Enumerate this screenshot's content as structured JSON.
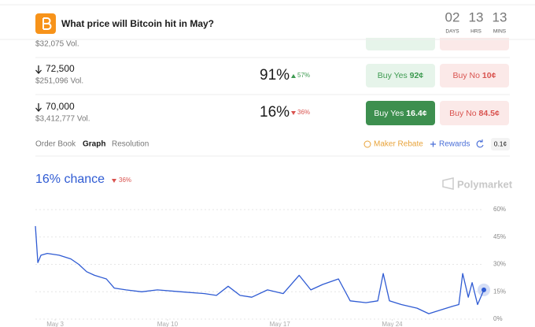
{
  "header": {
    "title": "What price will Bitcoin hit in May?",
    "countdown": [
      {
        "value": "02",
        "unit": "DAYS"
      },
      {
        "value": "13",
        "unit": "HRS"
      },
      {
        "value": "13",
        "unit": "MINS"
      }
    ]
  },
  "markets": [
    {
      "volume": "$32,075 Vol."
    },
    {
      "price": "72,500",
      "volume": "$251,096 Vol.",
      "chance": "91%",
      "change": "57%",
      "buy_yes": {
        "label": "Buy Yes",
        "price": "92¢"
      },
      "buy_no": {
        "label": "Buy No",
        "price": "10¢"
      }
    },
    {
      "price": "70,000",
      "volume": "$3,412,777 Vol.",
      "chance": "16%",
      "change": "36%",
      "buy_yes": {
        "label": "Buy Yes",
        "price": "16.4¢"
      },
      "buy_no": {
        "label": "Buy No",
        "price": "84.5¢"
      }
    }
  ],
  "tabs": [
    "Order Book",
    "Graph",
    "Resolution"
  ],
  "toolbar": {
    "maker_rebate": "Maker Rebate",
    "rewards": "Rewards",
    "tick_size": "0.1¢"
  },
  "chart_data": {
    "type": "line",
    "title": "16% chance",
    "change": "36%",
    "brand": "Polymarket",
    "x": [
      1.77,
      1.92,
      2.12,
      2.51,
      3.25,
      3.98,
      4.47,
      4.96,
      5.45,
      6.19,
      6.68,
      7.41,
      8.39,
      9.37,
      10.84,
      12.31,
      13.05,
      13.78,
      14.52,
      15.25,
      16.23,
      17.21,
      18.2,
      18.93,
      19.67,
      20.65,
      21.38,
      22.36,
      23.1,
      23.44,
      23.83,
      24.57,
      25.55,
      26.28,
      27.02,
      27.75,
      28.15,
      28.39,
      28.74,
      28.98,
      29.32,
      29.71
    ],
    "series": [
      {
        "color": "#2f5bd3",
        "values": [
          51,
          31,
          35,
          36,
          35,
          33,
          30,
          26,
          24,
          22,
          17,
          16,
          15,
          16,
          15,
          14,
          13,
          18,
          13,
          12,
          16,
          14,
          24,
          16,
          19,
          22,
          10,
          9,
          10,
          25,
          10,
          8,
          6,
          3,
          5,
          7,
          8,
          25,
          12,
          20,
          8,
          16
        ]
      }
    ],
    "xlim": [
      1.77,
      29.71
    ],
    "ylim": [
      0,
      60
    ],
    "xticks": [
      {
        "value": 3,
        "label": "May 3"
      },
      {
        "value": 10,
        "label": "May 10"
      },
      {
        "value": 17,
        "label": "May 17"
      },
      {
        "value": 24,
        "label": "May 24"
      }
    ],
    "yticks": [
      {
        "value": 60,
        "label": "60%"
      },
      {
        "value": 45,
        "label": "45%"
      },
      {
        "value": 30,
        "label": "30%"
      },
      {
        "value": 15,
        "label": "15%"
      },
      {
        "value": 0,
        "label": "0%"
      }
    ],
    "grid": true
  }
}
